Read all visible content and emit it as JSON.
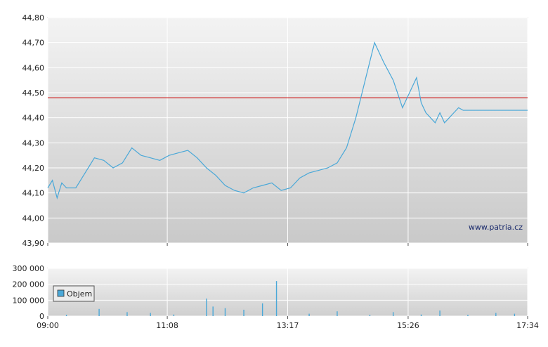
{
  "chart_data": [
    {
      "type": "line",
      "title": "",
      "xlabel": "",
      "ylabel": "",
      "ylim": [
        43.9,
        44.8
      ],
      "yticks": [
        "44,80",
        "44,70",
        "44,60",
        "44,50",
        "44,40",
        "44,30",
        "44,20",
        "44,10",
        "44,00",
        "43,90"
      ],
      "ytick_values": [
        44.8,
        44.7,
        44.6,
        44.5,
        44.4,
        44.3,
        44.2,
        44.1,
        44.0,
        43.9
      ],
      "xtick_times": [
        "09:00",
        "11:08",
        "13:17",
        "15:26",
        "17:34"
      ],
      "reference_line": {
        "value": 44.48,
        "color": "#cc0000"
      },
      "line_color": "#4aa8d8",
      "grid": true,
      "watermark": "www.patria.cz",
      "series": [
        {
          "times": [
            "09:00",
            "09:05",
            "09:10",
            "09:15",
            "09:20",
            "09:30",
            "09:40",
            "09:50",
            "10:00",
            "10:10",
            "10:20",
            "10:30",
            "10:40",
            "10:50",
            "11:00",
            "11:10",
            "11:20",
            "11:30",
            "11:40",
            "11:50",
            "12:00",
            "12:10",
            "12:20",
            "12:30",
            "12:40",
            "12:50",
            "13:00",
            "13:10",
            "13:20",
            "13:30",
            "13:40",
            "13:50",
            "14:00",
            "14:10",
            "14:20",
            "14:30",
            "14:40",
            "14:50",
            "15:00",
            "15:10",
            "15:20",
            "15:30",
            "15:35",
            "15:40",
            "15:45",
            "15:50",
            "15:55",
            "16:00",
            "16:05",
            "16:10",
            "16:15",
            "16:20",
            "16:25",
            "16:30",
            "16:35",
            "16:40",
            "16:45",
            "16:50",
            "17:00",
            "17:10",
            "17:20",
            "17:30",
            "17:34"
          ],
          "values": [
            44.12,
            44.15,
            44.08,
            44.14,
            44.12,
            44.12,
            44.18,
            44.24,
            44.23,
            44.2,
            44.22,
            44.28,
            44.25,
            44.24,
            44.23,
            44.25,
            44.26,
            44.27,
            44.24,
            44.2,
            44.17,
            44.13,
            44.11,
            44.1,
            44.12,
            44.13,
            44.14,
            44.11,
            44.12,
            44.16,
            44.18,
            44.19,
            44.2,
            44.22,
            44.28,
            44.4,
            44.55,
            44.7,
            44.62,
            44.55,
            44.44,
            44.52,
            44.56,
            44.46,
            44.42,
            44.4,
            44.38,
            44.42,
            44.38,
            44.4,
            44.42,
            44.44,
            44.43,
            44.43,
            44.43,
            44.43,
            44.43,
            44.43,
            44.43,
            44.43,
            44.43,
            44.43,
            44.43
          ]
        }
      ]
    },
    {
      "type": "bar",
      "title": "",
      "ylim": [
        0,
        300000
      ],
      "yticks": [
        "300 000",
        "200 000",
        "100 000",
        "0"
      ],
      "ytick_values": [
        300000,
        200000,
        100000,
        0
      ],
      "xtick_times": [
        "09:00",
        "11:08",
        "13:17",
        "15:26",
        "17:34"
      ],
      "bar_color": "#4aa8d8",
      "legend": {
        "label": "Objem",
        "position": "top-left"
      },
      "grid": true,
      "series": [
        {
          "name": "Objem",
          "times": [
            "09:20",
            "09:55",
            "10:25",
            "10:50",
            "11:15",
            "11:50",
            "11:57",
            "12:10",
            "12:30",
            "12:50",
            "13:05",
            "13:40",
            "14:10",
            "14:45",
            "15:10",
            "15:40",
            "16:00",
            "16:30",
            "17:00",
            "17:20"
          ],
          "values": [
            8000,
            45000,
            25000,
            20000,
            10000,
            110000,
            60000,
            50000,
            40000,
            80000,
            220000,
            15000,
            30000,
            8000,
            25000,
            10000,
            35000,
            8000,
            20000,
            15000
          ]
        }
      ]
    }
  ]
}
